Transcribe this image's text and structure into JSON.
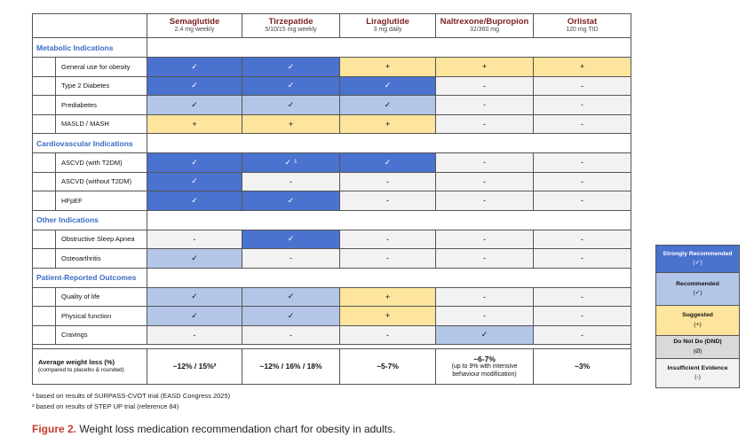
{
  "columns": [
    {
      "name": "Semaglutide",
      "dose": "2.4 mg weekly"
    },
    {
      "name": "Tirzepatide",
      "dose": "5/10/15 mg weekly"
    },
    {
      "name": "Liraglutide",
      "dose": "3 mg daily"
    },
    {
      "name": "Naltrexone/Bupropion",
      "dose": "32/360 mg"
    },
    {
      "name": "Orlistat",
      "dose": "120 mg TID"
    }
  ],
  "sections": [
    {
      "title": "Metabolic Indications",
      "rows": [
        {
          "label": "General use for obesity",
          "cells": [
            {
              "text": "✓",
              "color": "#4a72cf"
            },
            {
              "text": "✓",
              "color": "#4a72cf"
            },
            {
              "text": "+",
              "color": "#fde59d"
            },
            {
              "text": "+",
              "color": "#fde59d"
            },
            {
              "text": "+",
              "color": "#fde59d"
            }
          ]
        },
        {
          "label": "Type 2 Diabetes",
          "cells": [
            {
              "text": "✓",
              "color": "#4a72cf"
            },
            {
              "text": "✓",
              "color": "#4a72cf"
            },
            {
              "text": "✓",
              "color": "#4a72cf"
            },
            {
              "text": "-",
              "color": "#f2f2f2"
            },
            {
              "text": "-",
              "color": "#f2f2f2"
            }
          ]
        },
        {
          "label": "Prediabetes",
          "cells": [
            {
              "text": "✓",
              "color": "#b4c6e8"
            },
            {
              "text": "✓",
              "color": "#b4c6e8"
            },
            {
              "text": "✓",
              "color": "#b4c6e8"
            },
            {
              "text": "-",
              "color": "#f2f2f2"
            },
            {
              "text": "-",
              "color": "#f2f2f2"
            }
          ]
        },
        {
          "label": "MASLD / MASH",
          "cells": [
            {
              "text": "+",
              "color": "#fde59d"
            },
            {
              "text": "+",
              "color": "#fde59d"
            },
            {
              "text": "+",
              "color": "#fde59d"
            },
            {
              "text": "-",
              "color": "#f2f2f2"
            },
            {
              "text": "-",
              "color": "#f2f2f2"
            }
          ]
        }
      ]
    },
    {
      "title": "Cardiovascular Indications",
      "rows": [
        {
          "label": "ASCVD (with T2DM)",
          "cells": [
            {
              "text": "✓",
              "color": "#4a72cf"
            },
            {
              "text": "✓",
              "note": "1",
              "color": "#4a72cf"
            },
            {
              "text": "✓",
              "color": "#4a72cf"
            },
            {
              "text": "-",
              "color": "#f2f2f2"
            },
            {
              "text": "-",
              "color": "#f2f2f2"
            }
          ]
        },
        {
          "label": "ASCVD (without T2DM)",
          "cells": [
            {
              "text": "✓",
              "color": "#4a72cf"
            },
            {
              "text": "-",
              "color": "#f2f2f2"
            },
            {
              "text": "-",
              "color": "#f2f2f2"
            },
            {
              "text": "-",
              "color": "#f2f2f2"
            },
            {
              "text": "-",
              "color": "#f2f2f2"
            }
          ]
        },
        {
          "label": "HFpEF",
          "cells": [
            {
              "text": "✓",
              "color": "#4a72cf"
            },
            {
              "text": "✓",
              "color": "#4a72cf"
            },
            {
              "text": "-",
              "color": "#f2f2f2"
            },
            {
              "text": "-",
              "color": "#f2f2f2"
            },
            {
              "text": "-",
              "color": "#f2f2f2"
            }
          ]
        }
      ]
    },
    {
      "title": "Other Indications",
      "rows": [
        {
          "label": "Obstructive Sleep Apnea",
          "cells": [
            {
              "text": "-",
              "color": "#f2f2f2"
            },
            {
              "text": "✓",
              "color": "#4a72cf"
            },
            {
              "text": "-",
              "color": "#f2f2f2"
            },
            {
              "text": "-",
              "color": "#f2f2f2"
            },
            {
              "text": "-",
              "color": "#f2f2f2"
            }
          ]
        },
        {
          "label": "Osteoarthritis",
          "cells": [
            {
              "text": "✓",
              "color": "#b4c6e8"
            },
            {
              "text": "-",
              "color": "#f2f2f2"
            },
            {
              "text": "-",
              "color": "#f2f2f2"
            },
            {
              "text": "-",
              "color": "#f2f2f2"
            },
            {
              "text": "-",
              "color": "#f2f2f2"
            }
          ]
        }
      ]
    },
    {
      "title": "Patient-Reported Outcomes",
      "rows": [
        {
          "label": "Quality of life",
          "cells": [
            {
              "text": "✓",
              "color": "#b4c6e8"
            },
            {
              "text": "✓",
              "color": "#b4c6e8"
            },
            {
              "text": "+",
              "color": "#fde59d"
            },
            {
              "text": "-",
              "color": "#f2f2f2"
            },
            {
              "text": "-",
              "color": "#f2f2f2"
            }
          ]
        },
        {
          "label": "Physical function",
          "cells": [
            {
              "text": "✓",
              "color": "#b4c6e8"
            },
            {
              "text": "✓",
              "color": "#b4c6e8"
            },
            {
              "text": "+",
              "color": "#fde59d"
            },
            {
              "text": "-",
              "color": "#f2f2f2"
            },
            {
              "text": "-",
              "color": "#f2f2f2"
            }
          ]
        },
        {
          "label": "Cravings",
          "cells": [
            {
              "text": "-",
              "color": "#f2f2f2"
            },
            {
              "text": "-",
              "color": "#f2f2f2"
            },
            {
              "text": "-",
              "color": "#f2f2f2"
            },
            {
              "text": "✓",
              "color": "#b4c6e8"
            },
            {
              "text": "-",
              "color": "#f2f2f2"
            }
          ]
        }
      ]
    }
  ],
  "weight_loss": {
    "label": "Average weight loss (%)",
    "note": "(compared to placebo & rounded)",
    "values": [
      {
        "main": "~12% / 15%²"
      },
      {
        "main": "~12% / 16% / 18%"
      },
      {
        "main": "~5-7%"
      },
      {
        "main": "~6-7%",
        "sub": "(up to 9% with intensive behaviour modification)"
      },
      {
        "main": "~3%"
      }
    ]
  },
  "footnotes": [
    "¹ based on results of SURPASS-CVOT trial (EASD Congress 2025)",
    "² based on results of STEP UP trial (reference 84)"
  ],
  "legend": [
    {
      "label": "Strongly Recommended",
      "symbol": "(✓)",
      "color": "#4a72cf",
      "text_color": "#ffffff"
    },
    {
      "label": "Recommended",
      "symbol": "(✓)",
      "color": "#b4c6e8",
      "text_color": "#111111"
    },
    {
      "label": "Suggested",
      "symbol": "(+)",
      "color": "#fde59d",
      "text_color": "#111111"
    },
    {
      "label": "Do Not Do (DND)",
      "symbol": "(Ø)",
      "color": "#d9d9d9",
      "text_color": "#111111"
    },
    {
      "label": "Insufficient Evidence",
      "symbol": "(-)",
      "color": "#f2f2f2",
      "text_color": "#111111"
    }
  ],
  "caption": {
    "prefix": "Figure 2.",
    "text": "Weight loss medication recommendation chart for obesity in adults."
  }
}
